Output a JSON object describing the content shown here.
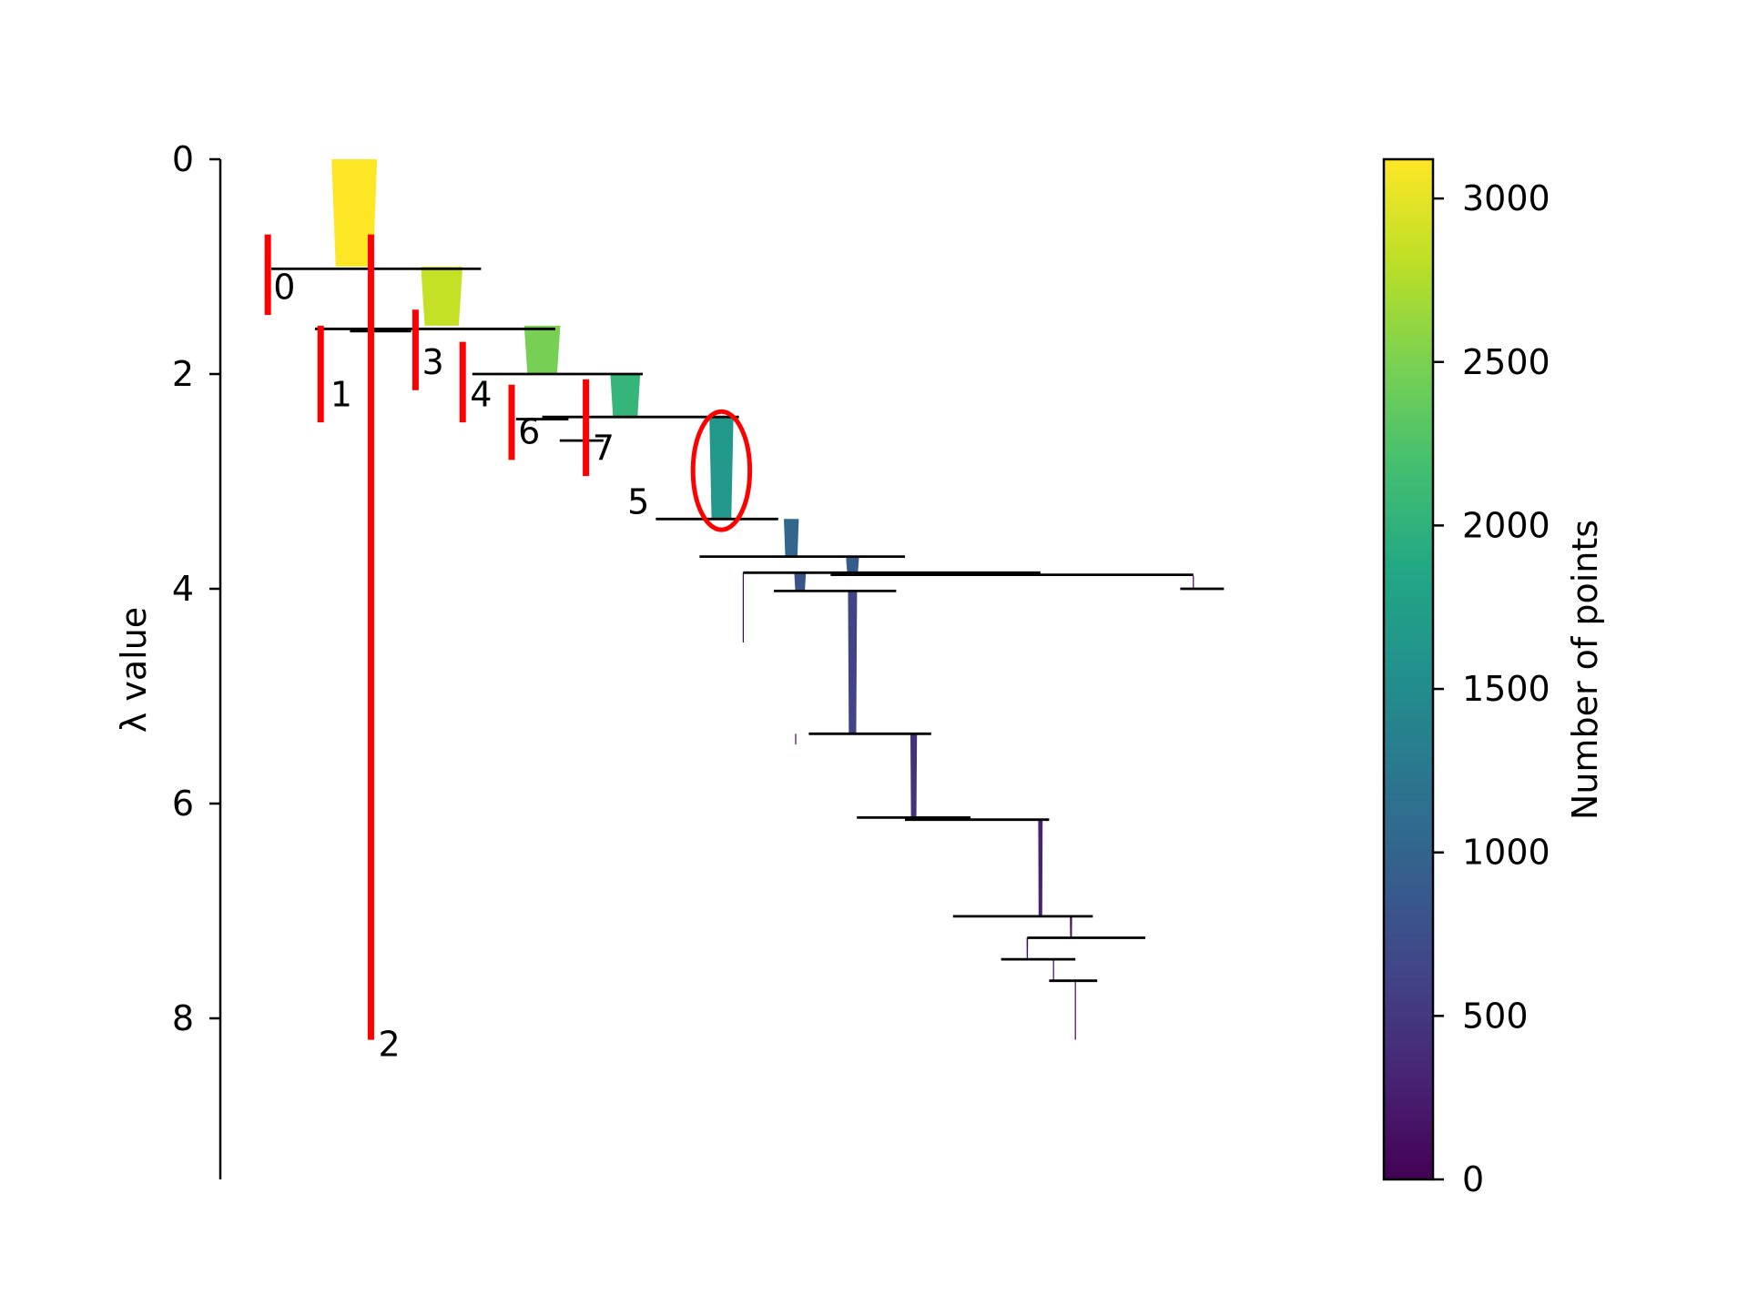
{
  "chart_data": {
    "type": "condensed-tree",
    "ylabel": "λ value",
    "colorbar_label": "Number of points",
    "ylim": [
      0,
      9.5
    ],
    "y_ticks": [
      0,
      2,
      4,
      6,
      8
    ],
    "colorbar": {
      "min": 0,
      "max": 3120,
      "ticks": [
        0,
        500,
        1000,
        1500,
        2000,
        2500,
        3000
      ],
      "colormap": "viridis"
    },
    "branches": [
      {
        "x": 2.9,
        "lambda_start": 0.0,
        "lambda_end": 1.0,
        "size": 3120
      },
      {
        "x": 4.9,
        "lambda_start": 1.0,
        "lambda_end": 1.55,
        "size": 2850
      },
      {
        "x": 7.2,
        "lambda_start": 1.55,
        "lambda_end": 2.0,
        "size": 2480
      },
      {
        "x": 9.1,
        "lambda_start": 2.0,
        "lambda_end": 2.4,
        "size": 2050
      },
      {
        "x": 11.3,
        "lambda_start": 2.4,
        "lambda_end": 3.35,
        "size": 1650
      },
      {
        "x": 12.9,
        "lambda_start": 3.35,
        "lambda_end": 3.7,
        "size": 1020
      },
      {
        "x": 14.3,
        "lambda_start": 3.7,
        "lambda_end": 3.85,
        "size": 900
      },
      {
        "x": 13.1,
        "lambda_start": 3.85,
        "lambda_end": 4.02,
        "size": 800
      },
      {
        "x": 14.3,
        "lambda_start": 4.02,
        "lambda_end": 5.35,
        "size": 620
      },
      {
        "x": 15.7,
        "lambda_start": 5.35,
        "lambda_end": 6.15,
        "size": 450
      },
      {
        "x": 18.6,
        "lambda_start": 6.15,
        "lambda_end": 7.05,
        "size": 300
      },
      {
        "x": 19.3,
        "lambda_start": 7.05,
        "lambda_end": 7.25,
        "size": 150
      },
      {
        "x": 18.3,
        "lambda_start": 7.25,
        "lambda_end": 7.45,
        "size": 100
      },
      {
        "x": 18.9,
        "lambda_start": 7.45,
        "lambda_end": 7.65,
        "size": 60
      },
      {
        "x": 19.4,
        "lambda_start": 7.65,
        "lambda_end": 8.2,
        "size": 30
      },
      {
        "x": 11.8,
        "lambda_start": 3.85,
        "lambda_end": 4.5,
        "size": 40
      },
      {
        "x": 13.0,
        "lambda_start": 5.35,
        "lambda_end": 5.45,
        "size": 20
      },
      {
        "x": 22.1,
        "lambda_start": 3.88,
        "lambda_end": 4.0,
        "size": 20
      }
    ],
    "splits": [
      {
        "lambda": 1.02,
        "x_from": 1.0,
        "x_to": 5.8
      },
      {
        "lambda": 1.58,
        "x_from": 2.0,
        "x_to": 7.5
      },
      {
        "lambda": 1.6,
        "x_from": 2.8,
        "x_to": 4.2
      },
      {
        "lambda": 2.0,
        "x_from": 5.6,
        "x_to": 9.5
      },
      {
        "lambda": 2.4,
        "x_from": 7.2,
        "x_to": 11.7
      },
      {
        "lambda": 2.42,
        "x_from": 6.6,
        "x_to": 7.8
      },
      {
        "lambda": 2.62,
        "x_from": 7.6,
        "x_to": 8.6
      },
      {
        "lambda": 3.35,
        "x_from": 9.8,
        "x_to": 12.6
      },
      {
        "lambda": 3.7,
        "x_from": 10.8,
        "x_to": 15.5
      },
      {
        "lambda": 3.85,
        "x_from": 11.8,
        "x_to": 18.6
      },
      {
        "lambda": 3.87,
        "x_from": 13.8,
        "x_to": 22.1
      },
      {
        "lambda": 4.0,
        "x_from": 21.8,
        "x_to": 22.8
      },
      {
        "lambda": 4.02,
        "x_from": 12.5,
        "x_to": 15.3
      },
      {
        "lambda": 5.35,
        "x_from": 13.3,
        "x_to": 16.1
      },
      {
        "lambda": 6.13,
        "x_from": 14.4,
        "x_to": 17.0
      },
      {
        "lambda": 6.15,
        "x_from": 15.5,
        "x_to": 18.8
      },
      {
        "lambda": 7.05,
        "x_from": 16.6,
        "x_to": 19.8
      },
      {
        "lambda": 7.25,
        "x_from": 18.3,
        "x_to": 21.0
      },
      {
        "lambda": 7.45,
        "x_from": 17.7,
        "x_to": 19.4
      },
      {
        "lambda": 7.65,
        "x_from": 18.8,
        "x_to": 19.9
      }
    ],
    "selected_clusters": [
      {
        "label": "0",
        "x": 0.92,
        "lambda_start": 0.7,
        "lambda_end": 1.45
      },
      {
        "label": "1",
        "x": 2.13,
        "lambda_start": 1.55,
        "lambda_end": 2.45
      },
      {
        "label": "2",
        "x": 3.28,
        "lambda_start": 0.7,
        "lambda_end": 8.2
      },
      {
        "label": "3",
        "x": 4.3,
        "lambda_start": 1.4,
        "lambda_end": 2.15
      },
      {
        "label": "4",
        "x": 5.38,
        "lambda_start": 1.7,
        "lambda_end": 2.45
      },
      {
        "label": "6",
        "x": 6.5,
        "lambda_start": 2.1,
        "lambda_end": 2.8
      },
      {
        "label": "7",
        "x": 8.2,
        "lambda_start": 2.05,
        "lambda_end": 2.95
      }
    ],
    "labels": [
      {
        "text": "0",
        "x": 1.3,
        "lambda": 1.3
      },
      {
        "text": "1",
        "x": 2.6,
        "lambda": 2.3
      },
      {
        "text": "2",
        "x": 3.7,
        "lambda": 8.35
      },
      {
        "text": "3",
        "x": 4.7,
        "lambda": 2.0
      },
      {
        "text": "4",
        "x": 5.8,
        "lambda": 2.3
      },
      {
        "text": "6",
        "x": 6.9,
        "lambda": 2.65
      },
      {
        "text": "7",
        "x": 8.6,
        "lambda": 2.8
      },
      {
        "text": "5",
        "x": 9.4,
        "lambda": 3.3
      }
    ],
    "highlight_ellipse": {
      "x": 11.3,
      "lambda": 2.9,
      "rx": 0.65,
      "rlambda": 0.55
    }
  }
}
